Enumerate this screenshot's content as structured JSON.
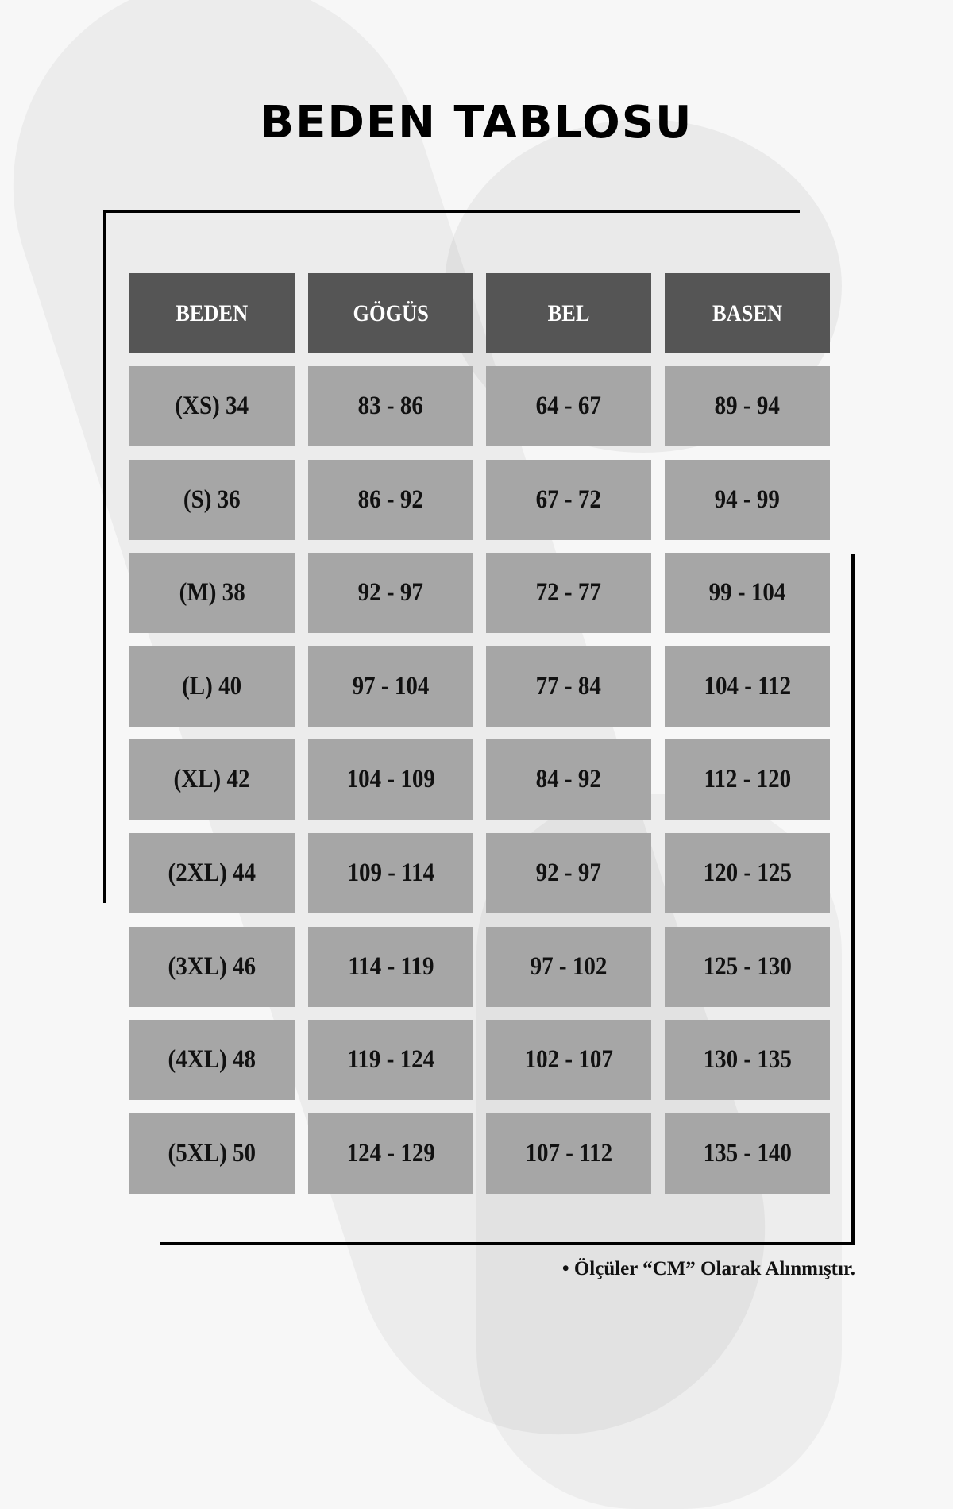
{
  "title": "BEDEN TABLOSU",
  "headers": [
    "BEDEN",
    "GÖGÜS",
    "BEL",
    "BASEN"
  ],
  "rows": [
    [
      "(XS) 34",
      "83 - 86",
      "64 - 67",
      "89 - 94"
    ],
    [
      "(S) 36",
      "86 - 92",
      "67 - 72",
      "94 - 99"
    ],
    [
      "(M) 38",
      "92 - 97",
      "72 - 77",
      "99 - 104"
    ],
    [
      "(L) 40",
      "97 - 104",
      "77 - 84",
      "104 - 112"
    ],
    [
      "(XL) 42",
      "104 - 109",
      "84 - 92",
      "112 - 120"
    ],
    [
      "(2XL) 44",
      "109 - 114",
      "92 - 97",
      "120 - 125"
    ],
    [
      "(3XL) 46",
      "114 - 119",
      "97 - 102",
      "125 - 130"
    ],
    [
      "(4XL) 48",
      "119 - 124",
      "102 - 107",
      "130 - 135"
    ],
    [
      "(5XL) 50",
      "124 - 129",
      "107 - 112",
      "135 - 140"
    ]
  ],
  "note": "• Ölçüler “CM” Olarak Alınmıştır.",
  "colors": {
    "header_bg": "#555555",
    "cell_bg": "#a6a6a6",
    "text": "#111111"
  }
}
